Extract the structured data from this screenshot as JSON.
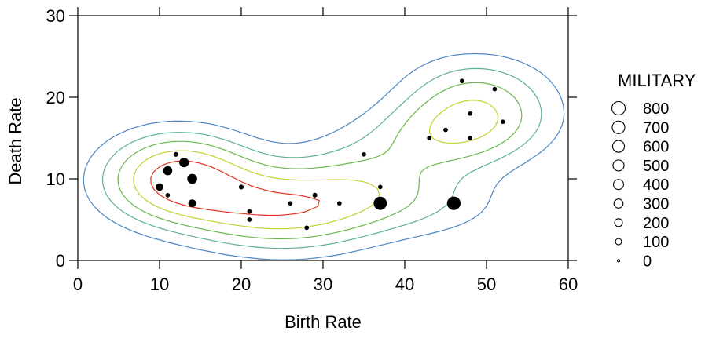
{
  "chart_data": {
    "type": "scatter",
    "title": "",
    "xlabel": "Birth Rate",
    "ylabel": "Death Rate",
    "xlim": [
      0,
      60
    ],
    "ylim": [
      0,
      30
    ],
    "xticks": [
      "0",
      "10",
      "20",
      "30",
      "40",
      "50",
      "60"
    ],
    "yticks": [
      "0",
      "10",
      "20",
      "30"
    ],
    "grid": false,
    "size_variable": "MILITARY",
    "legend": {
      "title": "MILITARY",
      "position": "right",
      "entries": [
        "800",
        "700",
        "600",
        "500",
        "400",
        "300",
        "200",
        "100",
        "0"
      ],
      "size_values": [
        800,
        700,
        600,
        500,
        400,
        300,
        200,
        100,
        0
      ]
    },
    "points": [
      {
        "x": 10,
        "y": 9,
        "size": 180
      },
      {
        "x": 11,
        "y": 11,
        "size": 300
      },
      {
        "x": 11,
        "y": 8,
        "size": 30
      },
      {
        "x": 12,
        "y": 13,
        "size": 40
      },
      {
        "x": 13,
        "y": 12,
        "size": 340
      },
      {
        "x": 14,
        "y": 10,
        "size": 380
      },
      {
        "x": 14,
        "y": 7,
        "size": 200
      },
      {
        "x": 20,
        "y": 9,
        "size": 40
      },
      {
        "x": 21,
        "y": 6,
        "size": 30
      },
      {
        "x": 21,
        "y": 5,
        "size": 30
      },
      {
        "x": 26,
        "y": 7,
        "size": 30
      },
      {
        "x": 28,
        "y": 4,
        "size": 30
      },
      {
        "x": 29,
        "y": 8,
        "size": 40
      },
      {
        "x": 32,
        "y": 7,
        "size": 30
      },
      {
        "x": 35,
        "y": 13,
        "size": 30
      },
      {
        "x": 37,
        "y": 9,
        "size": 30
      },
      {
        "x": 37,
        "y": 7,
        "size": 780
      },
      {
        "x": 43,
        "y": 15,
        "size": 30
      },
      {
        "x": 45,
        "y": 16,
        "size": 30
      },
      {
        "x": 46,
        "y": 7,
        "size": 820
      },
      {
        "x": 47,
        "y": 22,
        "size": 30
      },
      {
        "x": 48,
        "y": 18,
        "size": 30
      },
      {
        "x": 48,
        "y": 15,
        "size": 30
      },
      {
        "x": 51,
        "y": 21,
        "size": 30
      },
      {
        "x": 52,
        "y": 17,
        "size": 30
      }
    ],
    "contour_levels": [
      {
        "color": "#4e86c4"
      },
      {
        "color": "#5fb38a"
      },
      {
        "color": "#6cb84f"
      },
      {
        "color": "#c5d02e"
      },
      {
        "color": "#e2331f"
      }
    ]
  }
}
